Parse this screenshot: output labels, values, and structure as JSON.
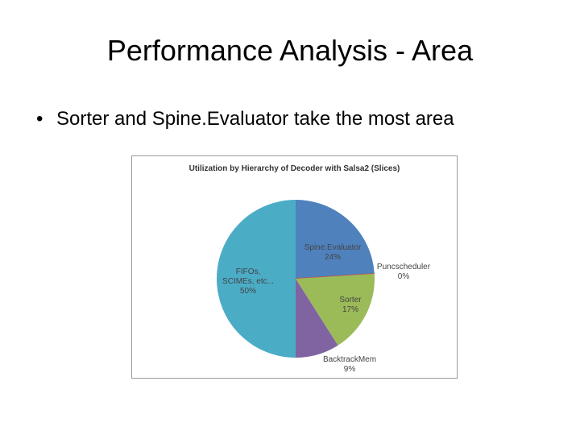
{
  "slide": {
    "title": "Performance Analysis - Area",
    "bullets": [
      "Sorter and Spine.Evaluator take the most area"
    ]
  },
  "chart_data": {
    "type": "pie",
    "title": "Utilization by Hierarchy of Decoder with Salsa2 (Slices)",
    "categories": [
      "Spine.Evaluator",
      "Puncscheduler",
      "Sorter",
      "BacktrackMem",
      "FIFOs, SCIMEs, etc..."
    ],
    "values": [
      24,
      0,
      17,
      9,
      50
    ],
    "value_labels": [
      "24%",
      "0%",
      "17%",
      "9%",
      "50%"
    ],
    "colors": [
      "#4f81bd",
      "#c0504d",
      "#9bbb59",
      "#8064a2",
      "#4bacc6"
    ]
  }
}
